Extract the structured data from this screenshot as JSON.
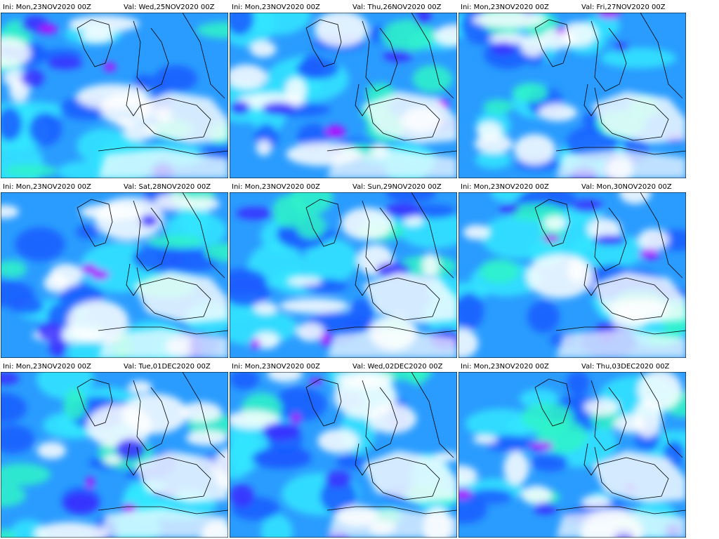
{
  "panels": [
    {
      "ini": "Ini: Mon,23NOV2020 00Z",
      "val": "Val: Wed,25NOV2020 00Z"
    },
    {
      "ini": "Ini: Mon,23NOV2020 00Z",
      "val": "Val: Thu,26NOV2020 00Z"
    },
    {
      "ini": "Ini: Mon,23NOV2020 00Z",
      "val": "Val: Fri,27NOV2020 00Z"
    },
    {
      "ini": "Ini: Mon,23NOV2020 00Z",
      "val": "Val: Sat,28NOV2020 00Z"
    },
    {
      "ini": "Ini: Mon,23NOV2020 00Z",
      "val": "Val: Sun,29NOV2020 00Z"
    },
    {
      "ini": "Ini: Mon,23NOV2020 00Z",
      "val": "Val: Mon,30NOV2020 00Z"
    },
    {
      "ini": "Ini: Mon,23NOV2020 00Z",
      "val": "Val: Tue,01DEC2020 00Z"
    },
    {
      "ini": "Ini: Mon,23NOV2020 00Z",
      "val": "Val: Wed,02DEC2020 00Z"
    },
    {
      "ini": "Ini: Mon,23NOV2020 00Z",
      "val": "Val: Thu,03DEC2020 00Z"
    }
  ]
}
